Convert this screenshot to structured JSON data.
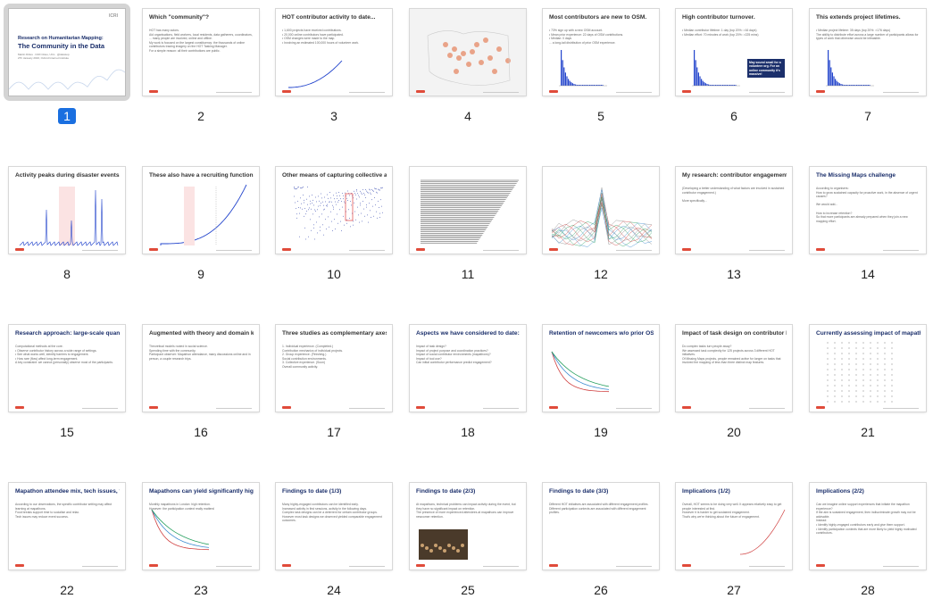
{
  "accent": "#1a6fe0",
  "slides": [
    {
      "number": "1",
      "title": "Research on Humanitarian Mapping:",
      "subtitle": "The Community in the Data",
      "meta": "Martin Dittus · ICRI Cities, UCL · @dekstop\n27h January 2016, Oxford Internet Institute",
      "logo": "ICRI",
      "kind": "title",
      "selected": true
    },
    {
      "number": "2",
      "title": "Which \"community\"?",
      "body": "HOT has many actors.\nAid organisations, field workers, local residents, data gatherers, coordinators, ... many people are involved, online and offline.\nMy work is focused on the largest constituency: the thousands of online contributors tracing imagery on the HOT Tasking Manager.\nFor a simple reason: all their contributions are public.",
      "kind": "text"
    },
    {
      "number": "3",
      "title": "HOT contributor activity to date...",
      "body": "• 1,600 projects have received contributions.\n• 20,000 online contributors have participated.\n• OSM changes were made to the map.\n• Involving an estimated 100,000 hours of volunteer work.",
      "kind": "growth"
    },
    {
      "number": "4",
      "title": "",
      "kind": "map"
    },
    {
      "number": "5",
      "title": "Most contributors are new to OSM.",
      "body": "• 73% sign up with a new OSM account.\n• Mean prior experience: 22 days of OSM contributions.\n• Median: 0 days\n... a long-tail distribution of prior OSM experience.",
      "kind": "bars"
    },
    {
      "number": "6",
      "title": "High contributor turnover.",
      "body": "• Median contributor lifetime: 1 day (top 20%: >16 days)\n• Median effort: 70 minutes of work (top 20%: >225 mins)",
      "callout": "May sound small for a volunteer org. For an online community it's massive!",
      "kind": "hist"
    },
    {
      "number": "7",
      "title": "This extends project lifetimes.",
      "body": "• Median project lifetime: 35 days (top 20%: >176 days)\nThe ability to distribute effort across a large number of participants allows for types of work that otherwise would be infeasible.",
      "kind": "hist"
    },
    {
      "number": "8",
      "title": "Activity peaks during disaster events.",
      "kind": "spikes"
    },
    {
      "number": "9",
      "title": "These also have a recruiting function.",
      "kind": "growth2"
    },
    {
      "number": "10",
      "title": "Other means of capturing collective activity...",
      "kind": "matrix"
    },
    {
      "number": "11",
      "title": "",
      "kind": "lines"
    },
    {
      "number": "12",
      "title": "",
      "kind": "lines2"
    },
    {
      "number": "13",
      "title": "My research: contributor engagement",
      "body": "(Developing a better understanding of what factors are involved in sustained contributor engagement.)\n\nMore specifically...",
      "kind": "text"
    },
    {
      "number": "14",
      "title": "The Missing Maps challenge",
      "body": "According to organisers:\nHow to grow sustained capacity for proactive work, in the absence of urgent causes?\n\nWe would add...\n\nHow to increase retention?\nSo that more participants are already prepared when they join a new mapping effort.",
      "kind": "text"
    },
    {
      "number": "15",
      "title": "Research approach: large-scale quantitative (forensic/obs.) studies",
      "body": "Computational methods at the core.\n• Observe contributor history across a wide range of settings.\n• See what works well, identify barriers to engagement.\n• How rare (flow) affect long-term engagement.\nA key constraint: we cannot (personally) observe most of the participants.",
      "kind": "text2"
    },
    {
      "number": "16",
      "title": "Augmented with theory and domain knowledge.",
      "body": "Theoretical models rooted in social science.\nSpending time with the community.\nParticipant observer: Mapathon attendance, many discussions online and in person, a couple research trips.",
      "kind": "text"
    },
    {
      "number": "17",
      "title": "Three studies as complementary axes of observation...",
      "body": "1. Individual experience. (Completed.)\nContribution mechanics of individual projects.\n2. Group experience. (Finishing.)\nSocial contribution environments.\n3. Collective experience. (Soon)\nOverall community activity.",
      "kind": "text"
    },
    {
      "number": "18",
      "title": "Aspects we have considered to date:",
      "body": "Impact of task design?\nImpact of project purpose and coordination practices?\nImpact of social contributor environments (mapathons)?\nImpact of tool use?\nCan initial contributor performance predict engagement?",
      "kind": "text"
    },
    {
      "number": "19",
      "title": "Retention of newcomers w/o prior OSM experience:",
      "kind": "survival"
    },
    {
      "number": "20",
      "title": "Impact of task design on contributor labour hours.",
      "body": "Do complex tasks turn people away?\nWe assessed task complexity for 125 projects across 3 different HOT initiatives.\nOf Missing Maps projects, people remained active for longer on tasks that involved the mapping of less than three distinct map features.",
      "kind": "text"
    },
    {
      "number": "21",
      "title": "Currently assessing impact of mapathon settings.",
      "kind": "dots"
    },
    {
      "number": "22",
      "title": "Mapathon attendee mix, tech issues, food breaks, ...",
      "body": "According to our observations, the specific contributor setting may affect learning at mapathons.\nFood breaks support time to socialise and relax.\nTech issues may reduce event success.",
      "kind": "text2"
    },
    {
      "number": "23",
      "title": "Mapathons can yield significantly higher retention",
      "body": "Monthly mapathons in London: high retention.\nHowever: the participation context really matters!",
      "kind": "survival"
    },
    {
      "number": "24",
      "title": "Findings to date (1/3)",
      "body": "Many highly-engaged contributors can be identified early.\nIncreased activity in first sessions, activity in the following days.\nComplex task designs can be a deterrent for certain contributor groups.\nHowever most task designs we observed yielded comparable engagement outcomes.",
      "kind": "text"
    },
    {
      "number": "25",
      "title": "Findings to date (2/3)",
      "body": "At mapathons, technical problems can impact activity during the event, but they have no significant impact on retention.\nThe presence of more experienced attendees at mapathons can improve newcomer retention.",
      "kind": "photo"
    },
    {
      "number": "26",
      "title": "Findings to date (3/3)",
      "body": "Different HOT initiatives are associated with different engagement profiles.\nDifferent participation contexts are associated with different engagement profiles.",
      "kind": "text"
    },
    {
      "number": "27",
      "title": "Implications (1/2)",
      "body": "Overall, HOT seems to be doing very well. It appears relatively easy to get people interested at first.\nHowever it is harder to get sustained engagement.\nThat's why we're thinking about the future of engagement.",
      "kind": "impl"
    },
    {
      "number": "28",
      "title": "Implications (2/2)",
      "body": "Can we imagine online support experiences that initiate the mapathon experience?\nIf the aim is sustained engagement, then indiscriminate growth may not be advisable.\nInstead:\n• Identify highly-engaged contributors early and give them support.\n• Identify participation contexts that are more likely to yield highly motivated contributors.",
      "kind": "text"
    }
  ]
}
